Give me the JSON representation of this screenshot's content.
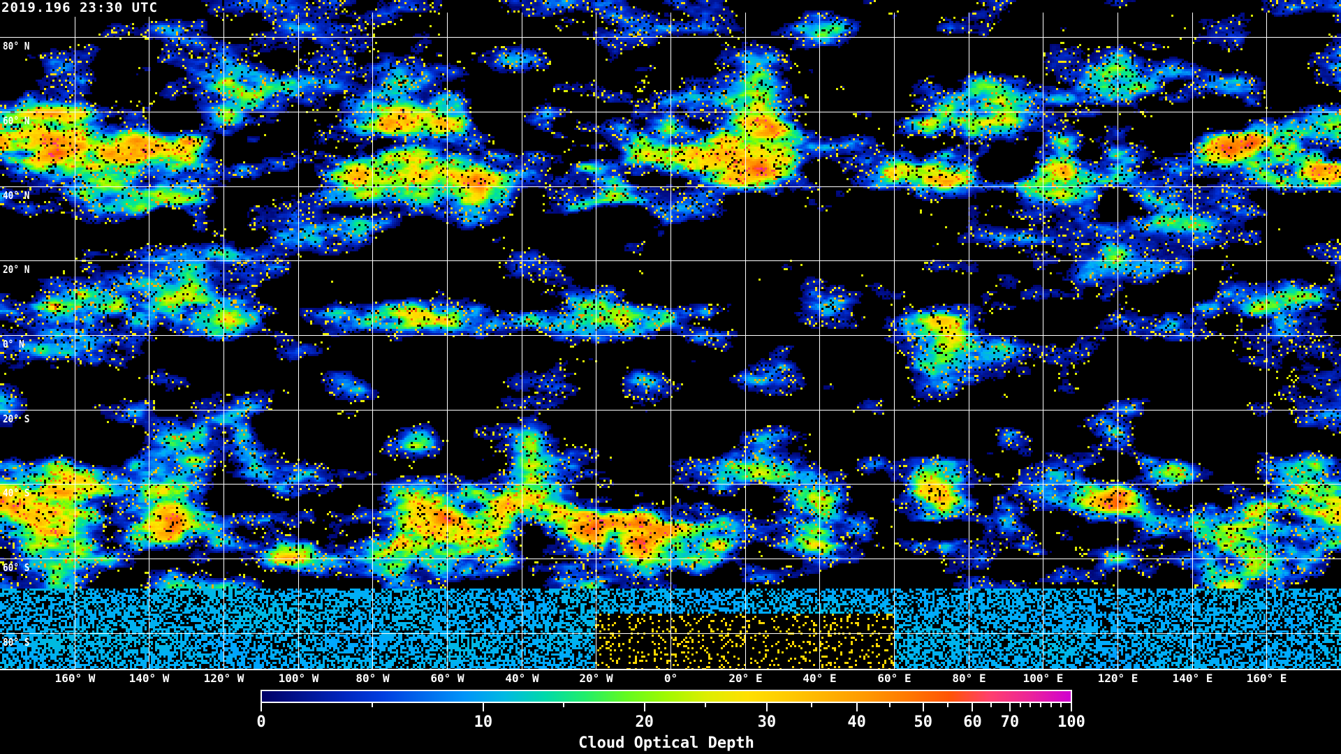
{
  "timestamp": "2019.196 23:30 UTC",
  "map": {
    "projection": "equirectangular",
    "lon_range": [
      -180,
      180
    ],
    "lat_range": [
      -90,
      90
    ],
    "gridlines": "every 20 degrees",
    "background_color": "#000000",
    "grid_color": "#ffffff",
    "lat_labels": [
      {
        "lat": 80,
        "label": "80° N"
      },
      {
        "lat": 60,
        "label": "60° N"
      },
      {
        "lat": 40,
        "label": "40° N"
      },
      {
        "lat": 20,
        "label": "20° N"
      },
      {
        "lat": 0,
        "label": "0° N"
      },
      {
        "lat": -20,
        "label": "20° S"
      },
      {
        "lat": -40,
        "label": "40° S"
      },
      {
        "lat": -60,
        "label": "60° S"
      },
      {
        "lat": -80,
        "label": "80° S"
      }
    ],
    "lon_labels": [
      {
        "lon": -160,
        "label": "160° W"
      },
      {
        "lon": -140,
        "label": "140° W"
      },
      {
        "lon": -120,
        "label": "120° W"
      },
      {
        "lon": -100,
        "label": "100° W"
      },
      {
        "lon": -80,
        "label": "80° W"
      },
      {
        "lon": -60,
        "label": "60° W"
      },
      {
        "lon": -40,
        "label": "40° W"
      },
      {
        "lon": -20,
        "label": "20° W"
      },
      {
        "lon": 0,
        "label": "0°"
      },
      {
        "lon": 20,
        "label": "20° E"
      },
      {
        "lon": 40,
        "label": "40° E"
      },
      {
        "lon": 60,
        "label": "60° E"
      },
      {
        "lon": 80,
        "label": "80° E"
      },
      {
        "lon": 100,
        "label": "100° E"
      },
      {
        "lon": 120,
        "label": "120° E"
      },
      {
        "lon": 140,
        "label": "140° E"
      },
      {
        "lon": 160,
        "label": "160° E"
      }
    ]
  },
  "colorbar": {
    "title": "Cloud Optical Depth",
    "range": [
      0,
      100
    ],
    "tick_labels": [
      "0",
      "10",
      "20",
      "30",
      "40",
      "50",
      "60",
      "70",
      "100"
    ],
    "tick_values": [
      0,
      10,
      20,
      30,
      40,
      50,
      60,
      70,
      100
    ],
    "minor_tick_values": [
      5,
      15,
      25,
      35,
      45,
      55,
      65,
      75,
      80,
      85,
      90,
      95
    ],
    "colors": [
      "#000066",
      "#0033dd",
      "#00a8ff",
      "#00e890",
      "#80ff00",
      "#ffe800",
      "#ffa000",
      "#ff5500",
      "#ff4070",
      "#d000d0"
    ]
  }
}
